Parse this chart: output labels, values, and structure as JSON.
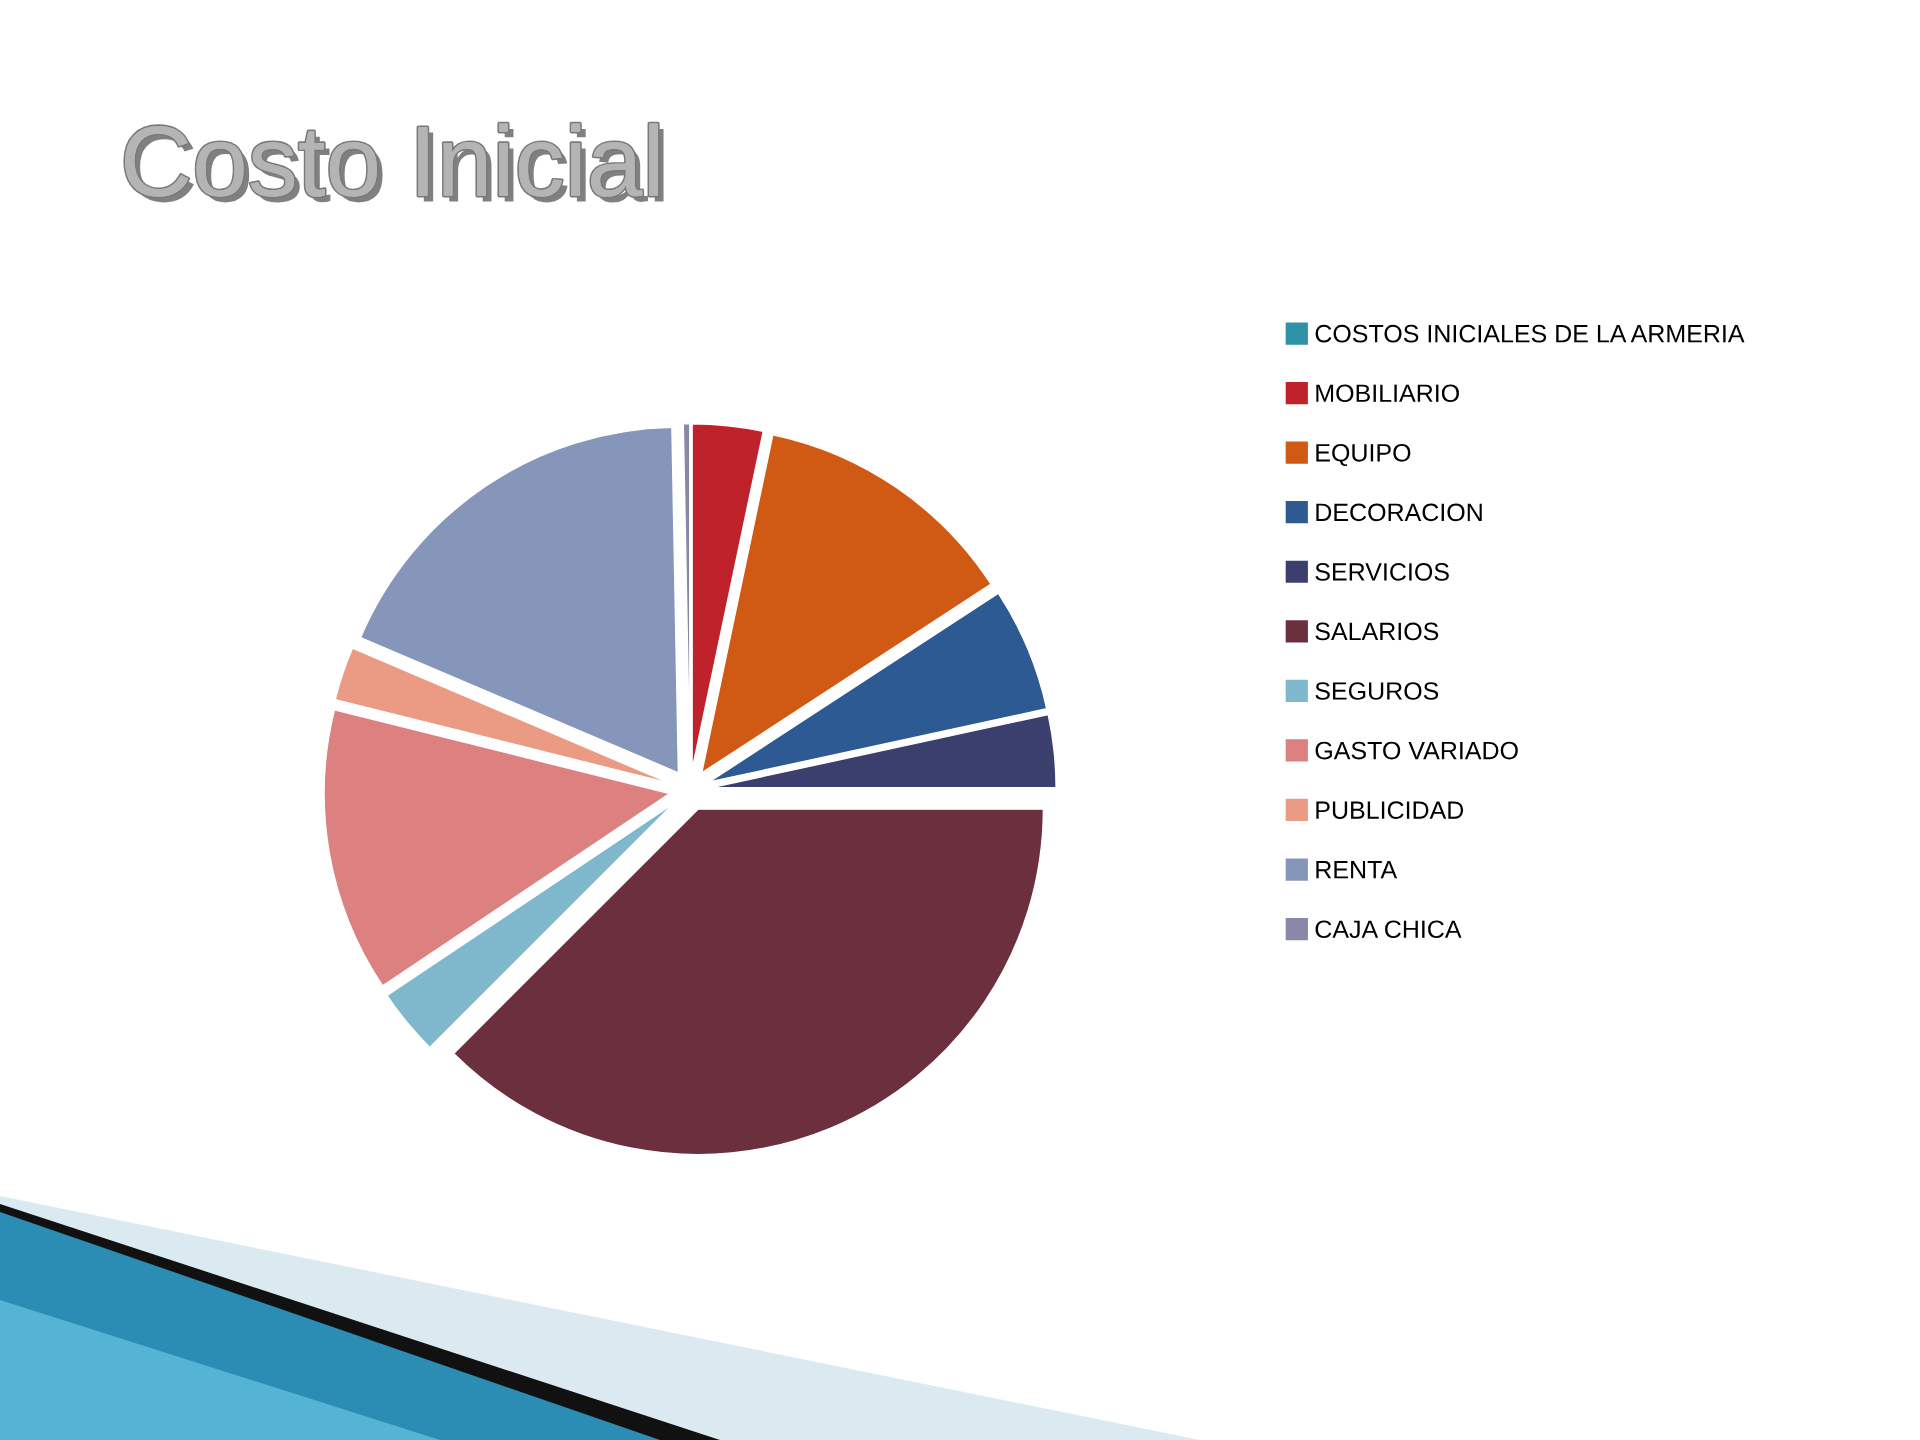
{
  "chart_data": {
    "type": "pie",
    "title": "Costo Inicial",
    "categories": [
      "COSTOS INICIALES DE LA ARMERIA",
      "MOBILIARIO",
      "EQUIPO",
      "DECORACION",
      "SERVICIOS",
      "SALARIOS",
      "SEGUROS",
      "GASTO VARIADO",
      "PUBLICIDAD",
      "RENTA",
      "CAJA CHICA"
    ],
    "values": [
      0,
      3.3,
      12.5,
      5.8,
      3.4,
      37.5,
      3.1,
      13.3,
      2.5,
      18.3,
      0.3
    ],
    "colors": [
      "#2e93a8",
      "#c0222b",
      "#d05a14",
      "#2e5a94",
      "#3b3f6e",
      "#6b2f3e",
      "#7fb8cc",
      "#dc8080",
      "#eb9a84",
      "#8696ba",
      "#8a88a8"
    ],
    "legend": "right"
  }
}
